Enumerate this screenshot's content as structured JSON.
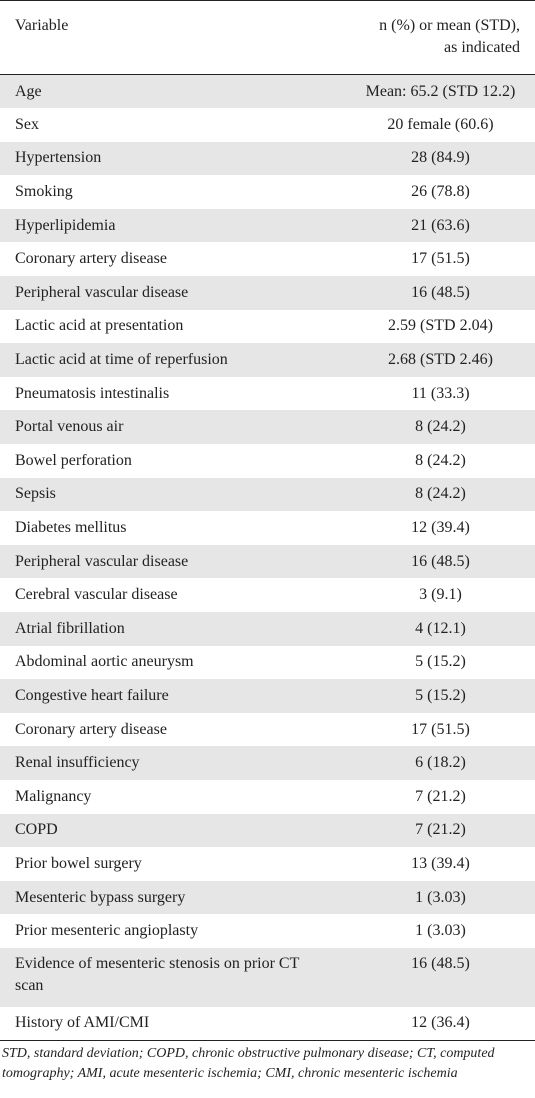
{
  "header": {
    "variable": "Variable",
    "value_line1": "n (%) or mean (STD),",
    "value_line2": "as indicated"
  },
  "rows": [
    {
      "variable": "Age",
      "value": "Mean: 65.2 (STD 12.2)"
    },
    {
      "variable": "Sex",
      "value": "20 female (60.6)"
    },
    {
      "variable": "Hypertension",
      "value": "28 (84.9)"
    },
    {
      "variable": "Smoking",
      "value": "26 (78.8)"
    },
    {
      "variable": "Hyperlipidemia",
      "value": "21 (63.6)"
    },
    {
      "variable": "Coronary artery disease",
      "value": "17 (51.5)"
    },
    {
      "variable": "Peripheral vascular disease",
      "value": "16 (48.5)"
    },
    {
      "variable": "Lactic acid at presentation",
      "value": "2.59 (STD 2.04)"
    },
    {
      "variable": "Lactic acid at time of reperfusion",
      "value": "2.68 (STD 2.46)"
    },
    {
      "variable": "Pneumatosis intestinalis",
      "value": "11 (33.3)"
    },
    {
      "variable": "Portal venous air",
      "value": "8 (24.2)"
    },
    {
      "variable": "Bowel perforation",
      "value": "8 (24.2)"
    },
    {
      "variable": "Sepsis",
      "value": "8 (24.2)"
    },
    {
      "variable": "Diabetes mellitus",
      "value": "12 (39.4)"
    },
    {
      "variable": "Peripheral vascular disease",
      "value": "16 (48.5)"
    },
    {
      "variable": "Cerebral vascular disease",
      "value": "3 (9.1)"
    },
    {
      "variable": "Atrial fibrillation",
      "value": "4 (12.1)"
    },
    {
      "variable": "Abdominal aortic aneurysm",
      "value": "5 (15.2)"
    },
    {
      "variable": "Congestive heart failure",
      "value": "5 (15.2)"
    },
    {
      "variable": "Coronary artery disease",
      "value": "17 (51.5)"
    },
    {
      "variable": "Renal insufficiency",
      "value": "6 (18.2)"
    },
    {
      "variable": "Malignancy",
      "value": "7 (21.2)"
    },
    {
      "variable": "COPD",
      "value": "7 (21.2)"
    },
    {
      "variable": "Prior bowel surgery",
      "value": "13 (39.4)"
    },
    {
      "variable": "Mesenteric bypass surgery",
      "value": "1 (3.03)"
    },
    {
      "variable": "Prior mesenteric angioplasty",
      "value": "1 (3.03)"
    },
    {
      "variable": "Evidence of mesenteric stenosis on prior CT scan",
      "value": "16 (48.5)"
    },
    {
      "variable": "History of AMI/CMI",
      "value": "12 (36.4)"
    }
  ],
  "footnote": "STD, standard deviation; COPD, chronic obstructive pulmonary disease; CT, computed tomography; AMI, acute mesenteric ischemia; CMI, chronic mesenteric ischemia"
}
